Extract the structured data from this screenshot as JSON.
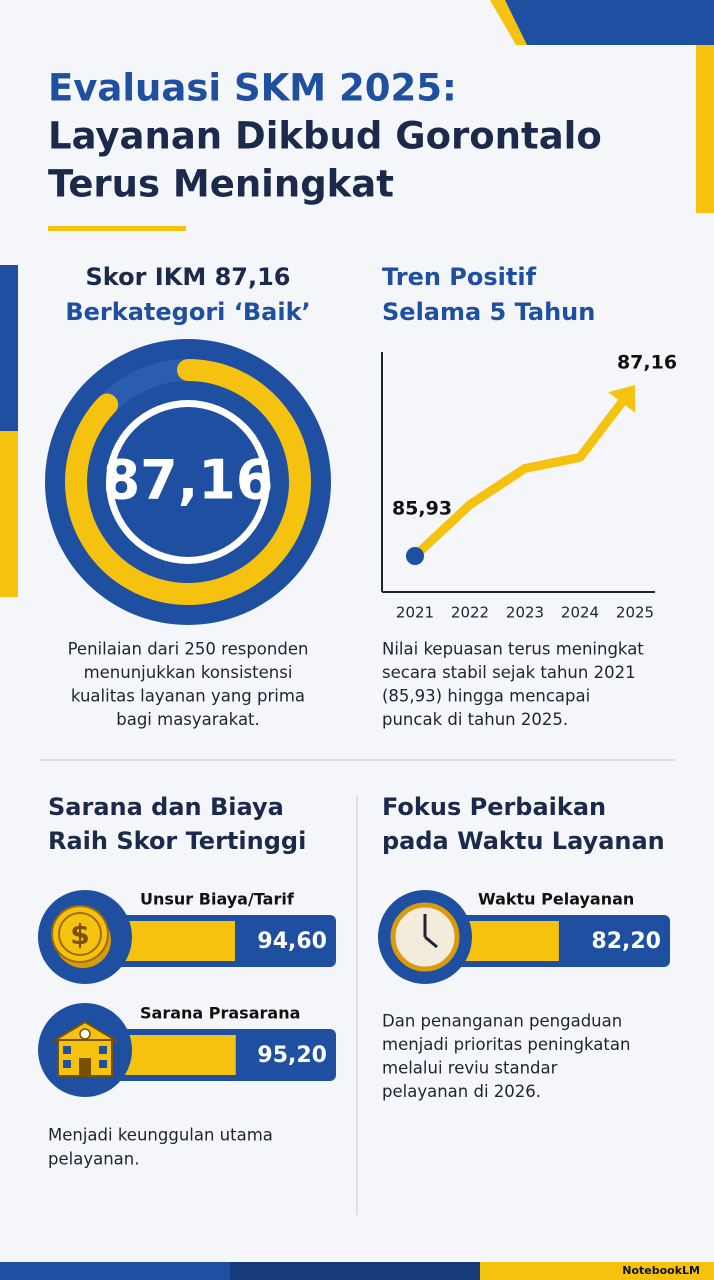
{
  "header": {
    "title": [
      "Evaluasi SKM 2025:",
      "Layanan Dikbud Gorontalo",
      "Terus Meningkat"
    ]
  },
  "score": {
    "heading": [
      "Skor IKM 87,16",
      "Berkategori ‘Baik’"
    ],
    "gauge": {
      "value": 87.16,
      "label": "87,16"
    },
    "description": [
      "Penilaian dari 250 responden",
      "menunjukkan konsistensi",
      "kualitas layanan yang prima",
      "bagi masyarakat."
    ]
  },
  "trend": {
    "heading": [
      "Tren Positif",
      "Selama 5 Tahun"
    ],
    "categories": [
      "2021",
      "2022",
      "2023",
      "2024",
      "2025"
    ],
    "values": [
      85.93,
      86.3,
      86.56,
      86.64,
      87.16
    ],
    "value_labels": [
      "85,93",
      null,
      null,
      null,
      "87,16"
    ],
    "description": [
      "Nilai kepuasan terus meningkat",
      "secara stabil sejak tahun 2021",
      "(85,93) hingga mencapai",
      "puncak di tahun 2025."
    ]
  },
  "highest": {
    "heading": [
      "Sarana dan Biaya",
      "Raih Skor Tertinggi"
    ],
    "items": [
      {
        "label": "Unsur Biaya/Tarif",
        "value": 94.6,
        "value_label": "94,60"
      },
      {
        "label": "Sarana Prasarana",
        "value": 95.2,
        "value_label": "95,20"
      }
    ],
    "description": [
      "Menjadi keunggulan utama",
      "pelayanan."
    ]
  },
  "focus": {
    "heading": [
      "Fokus Perbaikan",
      "pada Waktu Layanan"
    ],
    "items": [
      {
        "label": "Waktu Pelayanan",
        "value": 82.2,
        "value_label": "82,20"
      }
    ],
    "description": [
      "Dan penanganan pengaduan",
      "menjadi prioritas peningkatan",
      "melalui reviu standar",
      "pelayanan di 2026."
    ]
  },
  "footer": {
    "brand": "NotebookLM"
  }
}
